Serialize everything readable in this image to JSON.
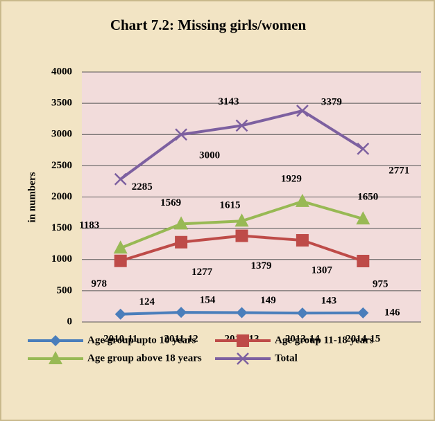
{
  "chart_data": {
    "type": "line",
    "title": "Chart 7.2: Missing girls/women",
    "y_label": "in numbers",
    "categories": [
      "2010-11",
      "2011-12",
      "2012-13",
      "2013-14",
      "2014-15"
    ],
    "series": [
      {
        "name": "Age group upto 10 years",
        "color": "#4a7ebb",
        "marker": "diamond",
        "values": [
          124,
          154,
          149,
          143,
          146
        ]
      },
      {
        "name": "Age group 11-18 years",
        "color": "#be4b48",
        "marker": "square",
        "values": [
          978,
          1277,
          1379,
          1307,
          975
        ]
      },
      {
        "name": "Age group above 18 years",
        "color": "#98b954",
        "marker": "triangle",
        "values": [
          1183,
          1569,
          1615,
          1929,
          1650
        ]
      },
      {
        "name": "Total",
        "color": "#7d60a0",
        "marker": "x",
        "values": [
          2285,
          3000,
          3143,
          3379,
          2771
        ]
      }
    ],
    "ylim": [
      0,
      4000
    ],
    "yticks": [
      0,
      500,
      1000,
      1500,
      2000,
      2500,
      3000,
      3500,
      4000
    ],
    "grid": true
  }
}
